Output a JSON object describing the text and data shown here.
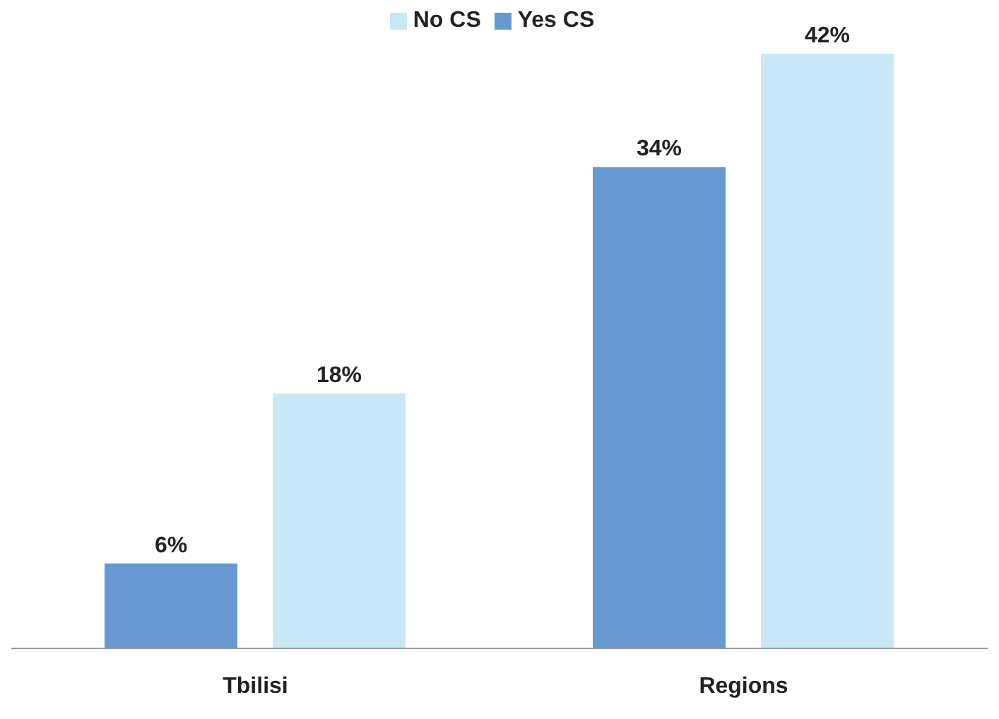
{
  "chart_data": {
    "type": "bar",
    "categories": [
      "Tbilisi",
      "Regions"
    ],
    "series": [
      {
        "name": "Yes CS",
        "color": "#6699d2",
        "values": [
          6,
          34
        ],
        "value_labels": [
          "6%",
          "34%"
        ]
      },
      {
        "name": "No CS",
        "color": "#c8e8f8",
        "values": [
          18,
          42
        ],
        "value_labels": [
          "18%",
          "42%"
        ]
      }
    ],
    "legend": "top",
    "grid": false
  }
}
